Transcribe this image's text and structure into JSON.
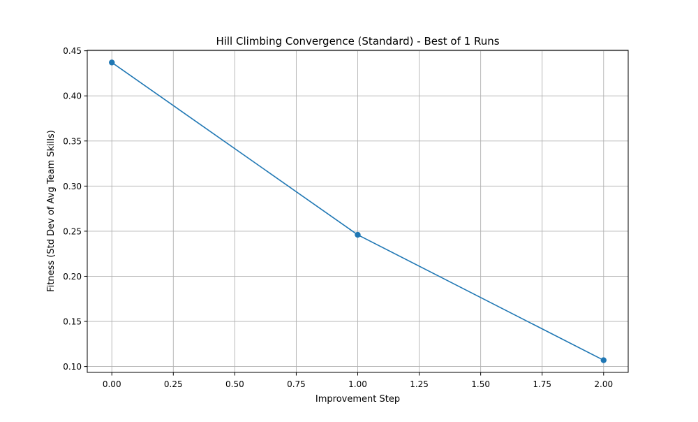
{
  "chart_data": {
    "type": "line",
    "title": "Hill Climbing Convergence (Standard) - Best of 1 Runs",
    "xlabel": "Improvement Step",
    "ylabel": "Fitness (Std Dev of Avg Team Skills)",
    "xlim": [
      -0.1,
      2.1
    ],
    "ylim": [
      0.0935,
      0.4505
    ],
    "x_ticks": [
      0.0,
      0.25,
      0.5,
      0.75,
      1.0,
      1.25,
      1.5,
      1.75,
      2.0
    ],
    "x_tick_labels": [
      "0.00",
      "0.25",
      "0.50",
      "0.75",
      "1.00",
      "1.25",
      "1.50",
      "1.75",
      "2.00"
    ],
    "y_ticks": [
      0.1,
      0.15,
      0.2,
      0.25,
      0.3,
      0.35,
      0.4,
      0.45
    ],
    "y_tick_labels": [
      "0.10",
      "0.15",
      "0.20",
      "0.25",
      "0.30",
      "0.35",
      "0.40",
      "0.45"
    ],
    "grid": true,
    "series": [
      {
        "color": "#1f77b4",
        "marker": "circle",
        "x": [
          0,
          1,
          2
        ],
        "y": [
          0.437,
          0.246,
          0.107
        ]
      }
    ]
  }
}
